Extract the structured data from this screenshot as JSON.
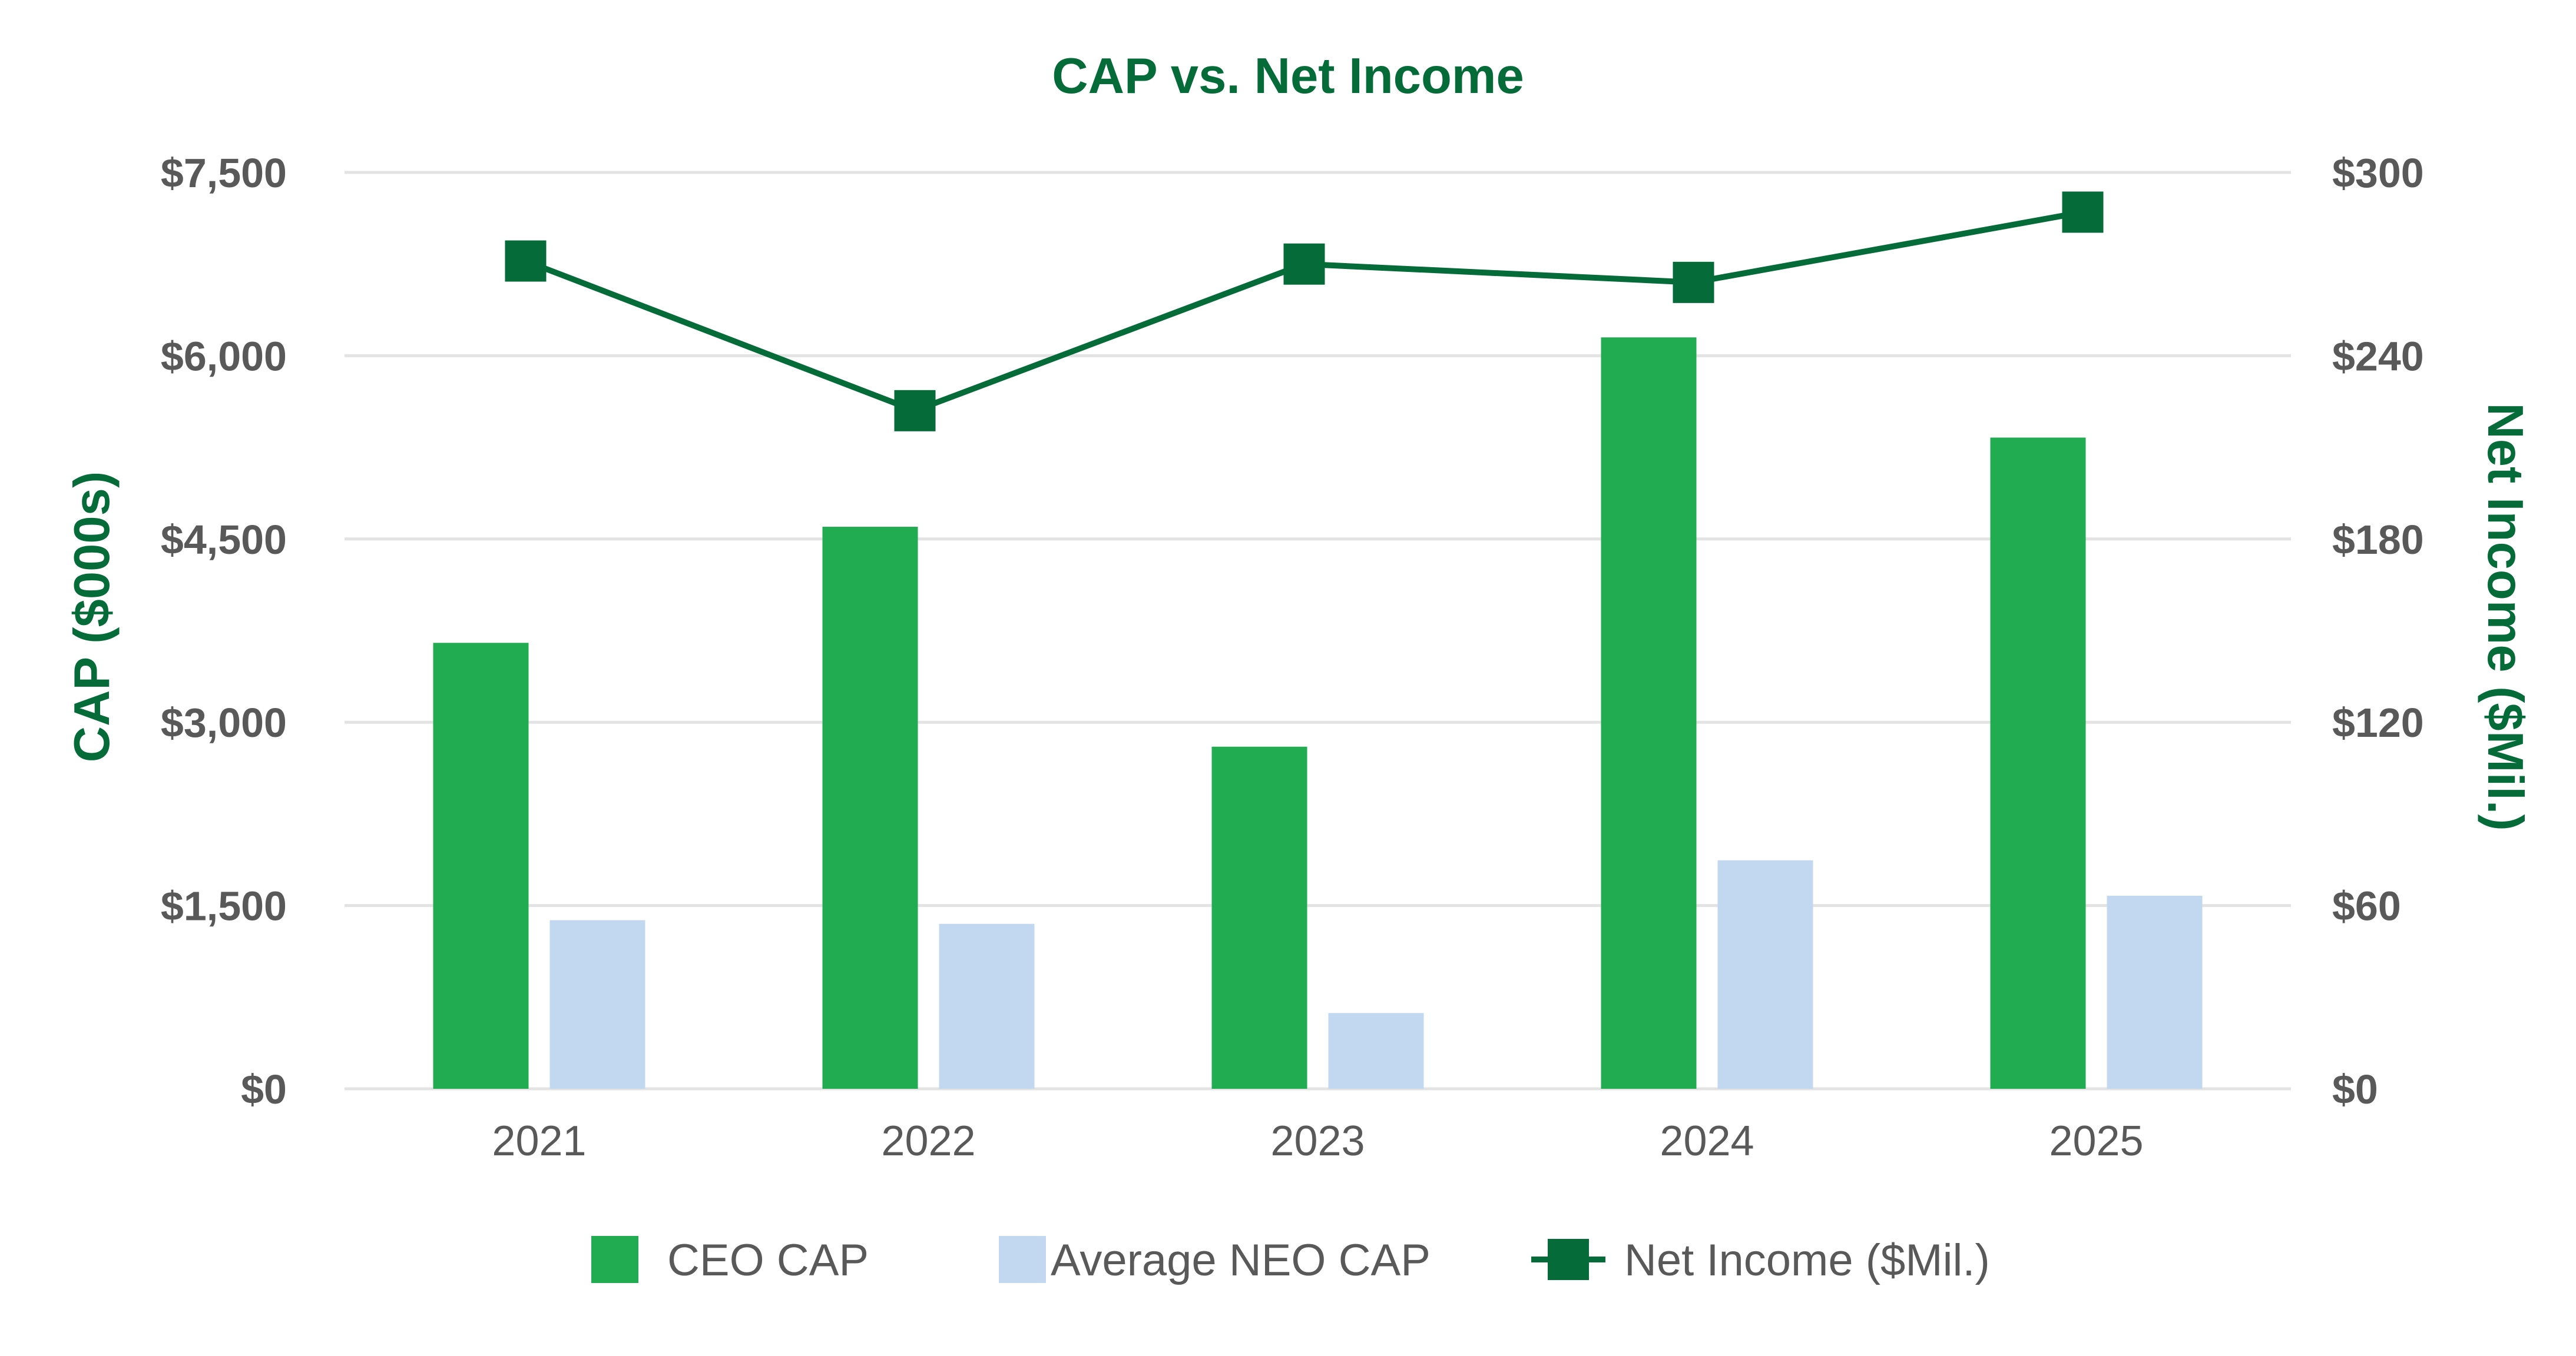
{
  "chart_data": {
    "type": "bar",
    "title": "CAP vs. Net Income",
    "xlabel": "",
    "ylabel": "CAP ($000s)",
    "y2label": "Net Income ($Mil.)",
    "ylim": [
      0,
      7500
    ],
    "y2lim": [
      0,
      300
    ],
    "yticks": [
      "$0",
      "$1,500",
      "$3,000",
      "$4,500",
      "$6,000",
      "$7,500"
    ],
    "y2ticks": [
      "$0",
      "$60",
      "$120",
      "$180",
      "$240",
      "$300"
    ],
    "categories": [
      "2021",
      "2022",
      "2023",
      "2024",
      "2025"
    ],
    "series": [
      {
        "name": "CEO CAP",
        "type": "bar",
        "axis": "left",
        "color": "#22ac52",
        "values": [
          3650,
          4600,
          2800,
          6150,
          5330
        ]
      },
      {
        "name": "Average NEO CAP",
        "type": "bar",
        "axis": "left",
        "color": "#c2d8f1",
        "values": [
          1380,
          1350,
          620,
          1870,
          1580
        ]
      },
      {
        "name": "Net Income ($Mil.)",
        "type": "line",
        "axis": "right",
        "color": "#046b39",
        "marker": "square",
        "values": [
          271,
          222,
          270,
          264,
          287
        ]
      }
    ],
    "legend": "bottom",
    "grid": true
  },
  "colors": {
    "title": "#046b39",
    "axis_title": "#046b39",
    "tick": "#595959",
    "grid": "#e3e3e3"
  }
}
